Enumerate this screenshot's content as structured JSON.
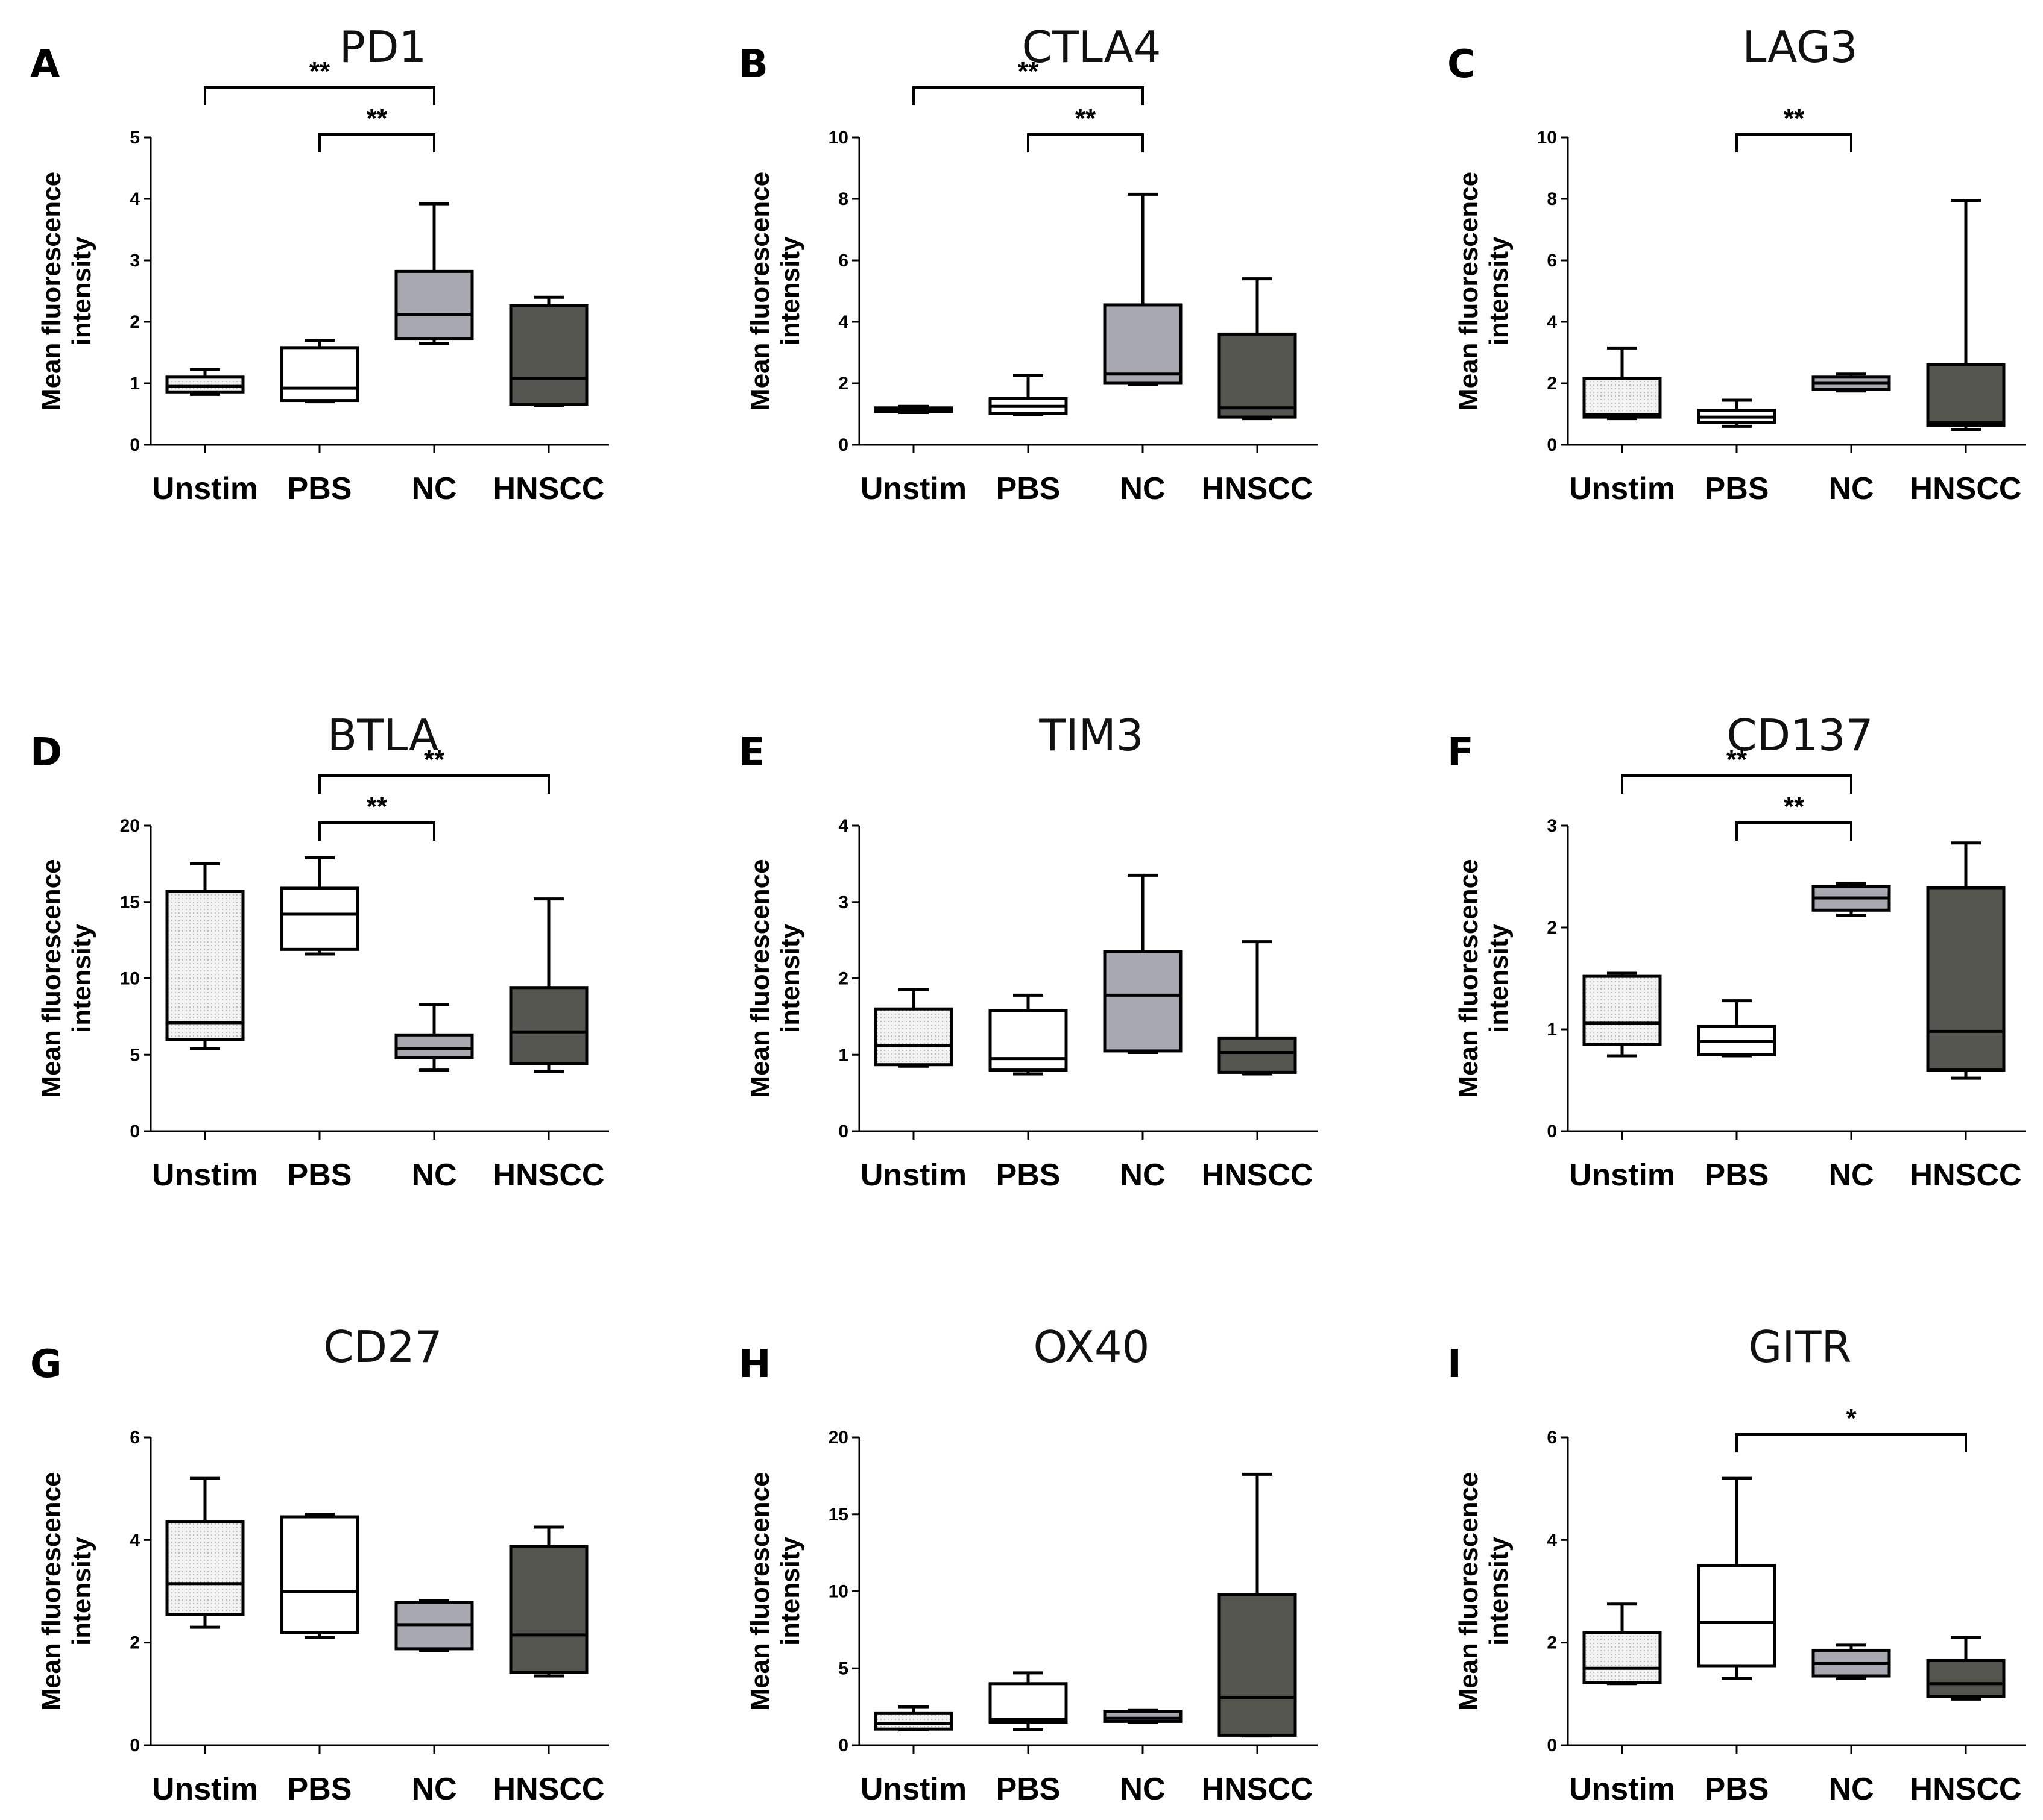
{
  "figure": {
    "ylabel_line1": "Mean fluorescence",
    "ylabel_line2": "intensity"
  },
  "colors": {
    "stroke": "#000000",
    "unstim": "#eeeeee",
    "pbs": "#ffffff",
    "nc": "#a8a8b0",
    "hnscc": "#55554f"
  },
  "chart_data": [
    {
      "panel": "A",
      "title": "PD1",
      "type": "box",
      "categories": [
        "Unstim",
        "PBS",
        "NC",
        "HNSCC"
      ],
      "ylim": [
        0,
        5
      ],
      "yticks": [
        0,
        1,
        2,
        3,
        4,
        5
      ],
      "boxes": [
        {
          "group": "Unstim",
          "min": 0.82,
          "q1": 0.86,
          "median": 0.95,
          "q3": 1.1,
          "max": 1.22
        },
        {
          "group": "PBS",
          "min": 0.7,
          "q1": 0.72,
          "median": 0.92,
          "q3": 1.58,
          "max": 1.7
        },
        {
          "group": "NC",
          "min": 1.65,
          "q1": 1.72,
          "median": 2.12,
          "q3": 2.82,
          "max": 3.92
        },
        {
          "group": "HNSCC",
          "min": 0.64,
          "q1": 0.66,
          "median": 1.08,
          "q3": 2.26,
          "max": 2.4
        }
      ],
      "significance": [
        {
          "from": "Unstim",
          "to": "NC",
          "label": "**"
        },
        {
          "from": "PBS",
          "to": "NC",
          "label": "**"
        }
      ]
    },
    {
      "panel": "B",
      "title": "CTLA4",
      "type": "box",
      "categories": [
        "Unstim",
        "PBS",
        "NC",
        "HNSCC"
      ],
      "ylim": [
        0,
        10
      ],
      "yticks": [
        0,
        2,
        4,
        6,
        8,
        10
      ],
      "boxes": [
        {
          "group": "Unstim",
          "min": 1.05,
          "q1": 1.08,
          "median": 1.12,
          "q3": 1.2,
          "max": 1.25
        },
        {
          "group": "PBS",
          "min": 0.98,
          "q1": 1.02,
          "median": 1.25,
          "q3": 1.5,
          "max": 2.25
        },
        {
          "group": "NC",
          "min": 1.95,
          "q1": 2.0,
          "median": 2.3,
          "q3": 4.55,
          "max": 8.15
        },
        {
          "group": "HNSCC",
          "min": 0.85,
          "q1": 0.9,
          "median": 1.2,
          "q3": 3.6,
          "max": 5.4
        }
      ],
      "significance": [
        {
          "from": "Unstim",
          "to": "NC",
          "label": "**"
        },
        {
          "from": "PBS",
          "to": "NC",
          "label": "**"
        }
      ]
    },
    {
      "panel": "C",
      "title": "LAG3",
      "type": "box",
      "categories": [
        "Unstim",
        "PBS",
        "NC",
        "HNSCC"
      ],
      "ylim": [
        0,
        10
      ],
      "yticks": [
        0,
        2,
        4,
        6,
        8,
        10
      ],
      "boxes": [
        {
          "group": "Unstim",
          "min": 0.85,
          "q1": 0.9,
          "median": 0.98,
          "q3": 2.15,
          "max": 3.15
        },
        {
          "group": "PBS",
          "min": 0.6,
          "q1": 0.72,
          "median": 0.9,
          "q3": 1.12,
          "max": 1.45
        },
        {
          "group": "NC",
          "min": 1.75,
          "q1": 1.8,
          "median": 2.0,
          "q3": 2.2,
          "max": 2.3
        },
        {
          "group": "HNSCC",
          "min": 0.5,
          "q1": 0.62,
          "median": 0.72,
          "q3": 2.6,
          "max": 7.95
        }
      ],
      "significance": [
        {
          "from": "PBS",
          "to": "NC",
          "label": "**"
        }
      ]
    },
    {
      "panel": "D",
      "title": "BTLA",
      "type": "box",
      "categories": [
        "Unstim",
        "PBS",
        "NC",
        "HNSCC"
      ],
      "ylim": [
        0,
        20
      ],
      "yticks": [
        0,
        5,
        10,
        15,
        20
      ],
      "boxes": [
        {
          "group": "Unstim",
          "min": 5.4,
          "q1": 6.0,
          "median": 7.1,
          "q3": 15.7,
          "max": 17.5
        },
        {
          "group": "PBS",
          "min": 11.6,
          "q1": 11.9,
          "median": 14.2,
          "q3": 15.9,
          "max": 17.9
        },
        {
          "group": "NC",
          "min": 4.0,
          "q1": 4.8,
          "median": 5.4,
          "q3": 6.3,
          "max": 8.3
        },
        {
          "group": "HNSCC",
          "min": 3.9,
          "q1": 4.4,
          "median": 6.5,
          "q3": 9.4,
          "max": 15.2
        }
      ],
      "significance": [
        {
          "from": "PBS",
          "to": "NC",
          "label": "**"
        },
        {
          "from": "PBS",
          "to": "HNSCC",
          "label": "**"
        }
      ]
    },
    {
      "panel": "E",
      "title": "TIM3",
      "type": "box",
      "categories": [
        "Unstim",
        "PBS",
        "NC",
        "HNSCC"
      ],
      "ylim": [
        0,
        4
      ],
      "yticks": [
        0,
        1,
        2,
        3,
        4
      ],
      "boxes": [
        {
          "group": "Unstim",
          "min": 0.85,
          "q1": 0.87,
          "median": 1.12,
          "q3": 1.6,
          "max": 1.85
        },
        {
          "group": "PBS",
          "min": 0.75,
          "q1": 0.8,
          "median": 0.95,
          "q3": 1.58,
          "max": 1.78
        },
        {
          "group": "NC",
          "min": 1.03,
          "q1": 1.05,
          "median": 1.78,
          "q3": 2.35,
          "max": 3.35
        },
        {
          "group": "HNSCC",
          "min": 0.75,
          "q1": 0.77,
          "median": 1.03,
          "q3": 1.22,
          "max": 2.48
        }
      ],
      "significance": []
    },
    {
      "panel": "F",
      "title": "CD137",
      "type": "box",
      "categories": [
        "Unstim",
        "PBS",
        "NC",
        "HNSCC"
      ],
      "ylim": [
        0,
        3
      ],
      "yticks": [
        0,
        1,
        2,
        3
      ],
      "boxes": [
        {
          "group": "Unstim",
          "min": 0.74,
          "q1": 0.85,
          "median": 1.06,
          "q3": 1.52,
          "max": 1.55
        },
        {
          "group": "PBS",
          "min": 0.74,
          "q1": 0.75,
          "median": 0.88,
          "q3": 1.03,
          "max": 1.28
        },
        {
          "group": "NC",
          "min": 2.12,
          "q1": 2.17,
          "median": 2.29,
          "q3": 2.4,
          "max": 2.43
        },
        {
          "group": "HNSCC",
          "min": 0.52,
          "q1": 0.6,
          "median": 0.98,
          "q3": 2.39,
          "max": 2.83
        }
      ],
      "significance": [
        {
          "from": "Unstim",
          "to": "NC",
          "label": "**"
        },
        {
          "from": "PBS",
          "to": "NC",
          "label": "**"
        }
      ]
    },
    {
      "panel": "G",
      "title": "CD27",
      "type": "box",
      "categories": [
        "Unstim",
        "PBS",
        "NC",
        "HNSCC"
      ],
      "ylim": [
        0,
        6
      ],
      "yticks": [
        0,
        2,
        4,
        6
      ],
      "boxes": [
        {
          "group": "Unstim",
          "min": 2.3,
          "q1": 2.55,
          "median": 3.15,
          "q3": 4.35,
          "max": 5.2
        },
        {
          "group": "PBS",
          "min": 2.1,
          "q1": 2.2,
          "median": 3.0,
          "q3": 4.45,
          "max": 4.5
        },
        {
          "group": "NC",
          "min": 1.85,
          "q1": 1.88,
          "median": 2.35,
          "q3": 2.78,
          "max": 2.82
        },
        {
          "group": "HNSCC",
          "min": 1.35,
          "q1": 1.42,
          "median": 2.15,
          "q3": 3.88,
          "max": 4.25
        }
      ],
      "significance": []
    },
    {
      "panel": "H",
      "title": "OX40",
      "type": "box",
      "categories": [
        "Unstim",
        "PBS",
        "NC",
        "HNSCC"
      ],
      "ylim": [
        0,
        20
      ],
      "yticks": [
        0,
        5,
        10,
        15,
        20
      ],
      "boxes": [
        {
          "group": "Unstim",
          "min": 1.0,
          "q1": 1.05,
          "median": 1.4,
          "q3": 2.1,
          "max": 2.5
        },
        {
          "group": "PBS",
          "min": 1.0,
          "q1": 1.5,
          "median": 1.7,
          "q3": 4.0,
          "max": 4.7
        },
        {
          "group": "NC",
          "min": 1.5,
          "q1": 1.55,
          "median": 1.75,
          "q3": 2.2,
          "max": 2.3
        },
        {
          "group": "HNSCC",
          "min": 0.6,
          "q1": 0.65,
          "median": 3.1,
          "q3": 9.8,
          "max": 17.6
        }
      ],
      "significance": []
    },
    {
      "panel": "I",
      "title": "GITR",
      "type": "box",
      "categories": [
        "Unstim",
        "PBS",
        "NC",
        "HNSCC"
      ],
      "ylim": [
        0,
        6
      ],
      "yticks": [
        0,
        2,
        4,
        6
      ],
      "boxes": [
        {
          "group": "Unstim",
          "min": 1.2,
          "q1": 1.22,
          "median": 1.5,
          "q3": 2.2,
          "max": 2.75
        },
        {
          "group": "PBS",
          "min": 1.3,
          "q1": 1.55,
          "median": 2.4,
          "q3": 3.5,
          "max": 5.2
        },
        {
          "group": "NC",
          "min": 1.3,
          "q1": 1.35,
          "median": 1.6,
          "q3": 1.85,
          "max": 1.95
        },
        {
          "group": "HNSCC",
          "min": 0.9,
          "q1": 0.95,
          "median": 1.2,
          "q3": 1.65,
          "max": 2.1
        }
      ],
      "significance": [
        {
          "from": "PBS",
          "to": "HNSCC",
          "label": "*"
        }
      ]
    }
  ]
}
